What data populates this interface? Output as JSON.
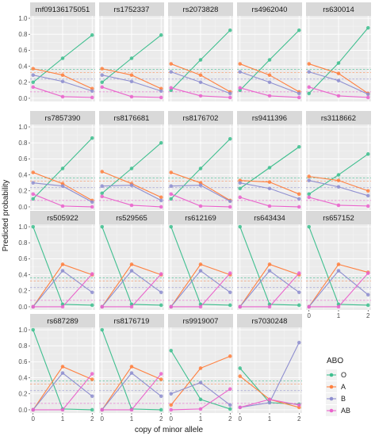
{
  "chart_data": {
    "type": "line",
    "layout": "facet-grid",
    "xlabel": "copy of minor allele",
    "ylabel": "Predicted probability",
    "x": [
      0,
      1,
      2
    ],
    "x_ticks": [
      "0",
      "1",
      "2"
    ],
    "y_ticks": [
      "0.0",
      "0.2",
      "0.4",
      "0.6",
      "0.8",
      "1.0"
    ],
    "ylim": [
      -0.04,
      1.03
    ],
    "xlim": [
      -0.1,
      2.1
    ],
    "reference_lines": {
      "O": 0.36,
      "A": 0.32,
      "B": 0.24,
      "AB": 0.08
    },
    "legend": {
      "title": "ABO",
      "entries": [
        "O",
        "A",
        "B",
        "AB"
      ]
    },
    "colors": {
      "O": "#3fbf8f",
      "A": "#ff8040",
      "B": "#8f8fd0",
      "AB": "#ea64cc"
    },
    "panels": [
      {
        "label": "mf09136175051",
        "series": {
          "O": [
            0.2,
            0.5,
            0.79
          ],
          "A": [
            0.37,
            0.29,
            0.12
          ],
          "B": [
            0.29,
            0.21,
            0.09
          ],
          "AB": [
            0.14,
            0.02,
            0.01
          ]
        }
      },
      {
        "label": "rs1752337",
        "series": {
          "O": [
            0.2,
            0.5,
            0.79
          ],
          "A": [
            0.37,
            0.29,
            0.12
          ],
          "B": [
            0.29,
            0.21,
            0.09
          ],
          "AB": [
            0.14,
            0.02,
            0.01
          ]
        }
      },
      {
        "label": "rs2073828",
        "series": {
          "O": [
            0.1,
            0.48,
            0.85
          ],
          "A": [
            0.43,
            0.29,
            0.08
          ],
          "B": [
            0.33,
            0.2,
            0.06
          ],
          "AB": [
            0.13,
            0.03,
            0.01
          ]
        }
      },
      {
        "label": "rs4962040",
        "series": {
          "O": [
            0.1,
            0.48,
            0.85
          ],
          "A": [
            0.43,
            0.29,
            0.08
          ],
          "B": [
            0.33,
            0.2,
            0.06
          ],
          "AB": [
            0.13,
            0.03,
            0.01
          ]
        }
      },
      {
        "label": "rs630014",
        "series": {
          "O": [
            0.06,
            0.44,
            0.88
          ],
          "A": [
            0.43,
            0.31,
            0.06
          ],
          "B": [
            0.33,
            0.22,
            0.05
          ],
          "AB": [
            0.14,
            0.03,
            0.01
          ]
        }
      },
      {
        "label": "rs7857390",
        "series": {
          "O": [
            0.1,
            0.48,
            0.86
          ],
          "A": [
            0.43,
            0.29,
            0.08
          ],
          "B": [
            0.3,
            0.26,
            0.06
          ],
          "AB": [
            0.16,
            0.01,
            0.0
          ]
        }
      },
      {
        "label": "rs8176681",
        "series": {
          "O": [
            0.17,
            0.48,
            0.8
          ],
          "A": [
            0.44,
            0.29,
            0.12
          ],
          "B": [
            0.26,
            0.27,
            0.08
          ],
          "AB": [
            0.13,
            0.02,
            0.0
          ]
        }
      },
      {
        "label": "rs8176702",
        "series": {
          "O": [
            0.1,
            0.48,
            0.85
          ],
          "A": [
            0.43,
            0.3,
            0.08
          ],
          "B": [
            0.26,
            0.27,
            0.07
          ],
          "AB": [
            0.16,
            0.01,
            0.0
          ]
        }
      },
      {
        "label": "rs9411396",
        "series": {
          "O": [
            0.23,
            0.49,
            0.75
          ],
          "A": [
            0.33,
            0.31,
            0.16
          ],
          "B": [
            0.3,
            0.23,
            0.1
          ],
          "AB": [
            0.12,
            0.01,
            0.0
          ]
        }
      },
      {
        "label": "rs3118662",
        "series": {
          "O": [
            0.16,
            0.4,
            0.66
          ],
          "A": [
            0.38,
            0.33,
            0.2
          ],
          "B": [
            0.33,
            0.25,
            0.14
          ],
          "AB": [
            0.12,
            0.02,
            0.01
          ]
        }
      },
      {
        "label": "rs505922",
        "series": {
          "O": [
            1.0,
            0.03,
            0.02
          ],
          "A": [
            0.0,
            0.53,
            0.4
          ],
          "B": [
            0.0,
            0.45,
            0.18
          ],
          "AB": [
            0.0,
            0.0,
            0.41
          ]
        }
      },
      {
        "label": "rs529565",
        "series": {
          "O": [
            1.0,
            0.03,
            0.02
          ],
          "A": [
            0.0,
            0.53,
            0.4
          ],
          "B": [
            0.0,
            0.45,
            0.18
          ],
          "AB": [
            0.0,
            0.0,
            0.41
          ]
        }
      },
      {
        "label": "rs612169",
        "series": {
          "O": [
            1.0,
            0.03,
            0.02
          ],
          "A": [
            0.0,
            0.53,
            0.4
          ],
          "B": [
            0.0,
            0.45,
            0.18
          ],
          "AB": [
            0.0,
            0.0,
            0.42
          ]
        }
      },
      {
        "label": "rs643434",
        "series": {
          "O": [
            1.0,
            0.03,
            0.02
          ],
          "A": [
            0.0,
            0.53,
            0.4
          ],
          "B": [
            0.0,
            0.45,
            0.18
          ],
          "AB": [
            0.0,
            0.0,
            0.42
          ]
        }
      },
      {
        "label": "rs657152",
        "series": {
          "O": [
            1.0,
            0.03,
            0.02
          ],
          "A": [
            0.0,
            0.53,
            0.43
          ],
          "B": [
            0.0,
            0.45,
            0.15
          ],
          "AB": [
            0.0,
            0.0,
            0.42
          ]
        }
      },
      {
        "label": "rs687289",
        "series": {
          "O": [
            1.0,
            0.01,
            0.0
          ],
          "A": [
            0.0,
            0.54,
            0.38
          ],
          "B": [
            0.0,
            0.46,
            0.17
          ],
          "AB": [
            0.0,
            0.0,
            0.45
          ]
        }
      },
      {
        "label": "rs8176719",
        "series": {
          "O": [
            1.0,
            0.01,
            0.0
          ],
          "A": [
            0.0,
            0.54,
            0.38
          ],
          "B": [
            0.0,
            0.46,
            0.17
          ],
          "AB": [
            0.0,
            0.0,
            0.45
          ]
        }
      },
      {
        "label": "rs9919007",
        "series": {
          "O": [
            0.74,
            0.13,
            0.01
          ],
          "A": [
            0.06,
            0.52,
            0.67
          ],
          "B": [
            0.2,
            0.34,
            0.06
          ],
          "AB": [
            0.0,
            0.01,
            0.26
          ]
        }
      },
      {
        "label": "rs7030248",
        "series": {
          "O": [
            0.52,
            0.09,
            0.07
          ],
          "A": [
            0.42,
            0.13,
            0.03
          ],
          "B": [
            0.03,
            0.09,
            0.84
          ],
          "AB": [
            0.03,
            0.13,
            0.06
          ]
        }
      }
    ]
  }
}
